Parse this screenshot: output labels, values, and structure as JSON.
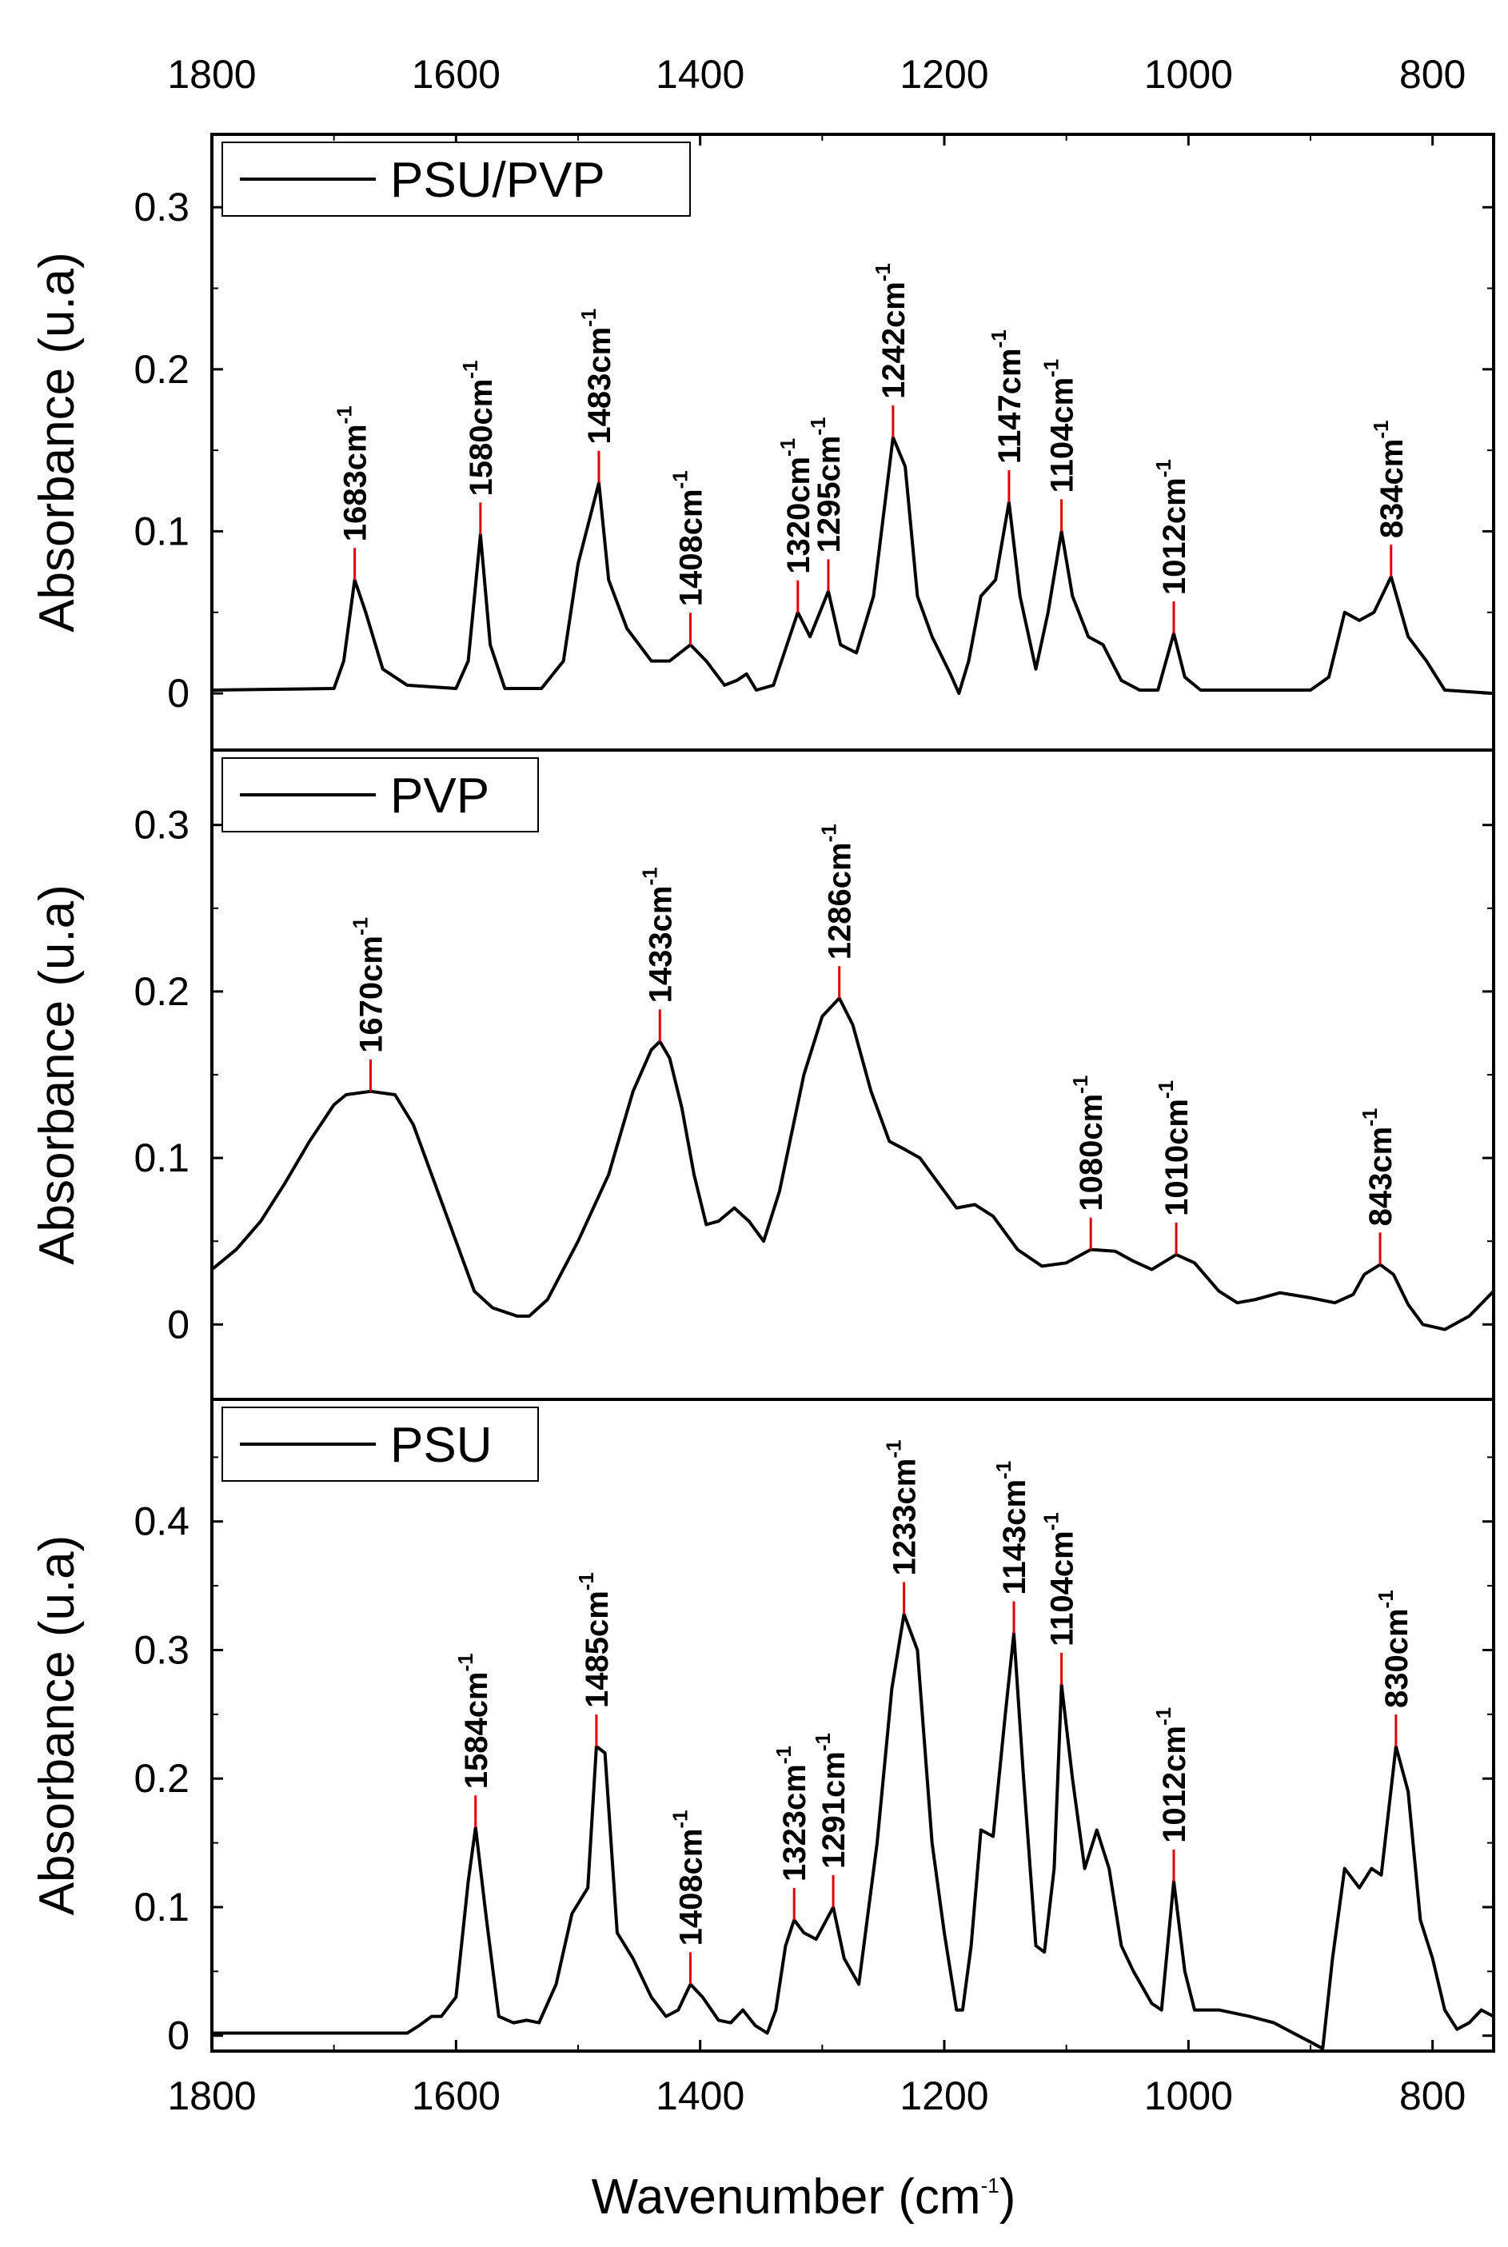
{
  "chart_data": {
    "type": "line",
    "xlabel": "Wavenumber (cm",
    "xlabel_sup": "-1",
    "xlabel_end": ")",
    "xlim": [
      1800,
      750
    ],
    "xticks": [
      "1800",
      "1600",
      "1400",
      "1200",
      "1000",
      "800"
    ],
    "panels": [
      {
        "id": "psu-pvp",
        "legend": "PSU/PVP",
        "ylabel": "Absorbance (u.a)",
        "ylim": [
          -0.035,
          0.345
        ],
        "yticks": [
          "0",
          "0.1",
          "0.2",
          "0.3"
        ],
        "spectrum": [
          [
            1800,
            0.002
          ],
          [
            1700,
            0.003
          ],
          [
            1692,
            0.02
          ],
          [
            1683,
            0.07
          ],
          [
            1674,
            0.05
          ],
          [
            1660,
            0.015
          ],
          [
            1640,
            0.005
          ],
          [
            1600,
            0.003
          ],
          [
            1590,
            0.02
          ],
          [
            1580,
            0.098
          ],
          [
            1572,
            0.03
          ],
          [
            1560,
            0.003
          ],
          [
            1530,
            0.003
          ],
          [
            1512,
            0.02
          ],
          [
            1500,
            0.08
          ],
          [
            1483,
            0.13
          ],
          [
            1475,
            0.07
          ],
          [
            1460,
            0.04
          ],
          [
            1440,
            0.02
          ],
          [
            1425,
            0.02
          ],
          [
            1408,
            0.03
          ],
          [
            1395,
            0.02
          ],
          [
            1380,
            0.005
          ],
          [
            1370,
            0.008
          ],
          [
            1362,
            0.012
          ],
          [
            1354,
            0.002
          ],
          [
            1340,
            0.005
          ],
          [
            1320,
            0.05
          ],
          [
            1310,
            0.035
          ],
          [
            1295,
            0.063
          ],
          [
            1285,
            0.03
          ],
          [
            1272,
            0.025
          ],
          [
            1258,
            0.06
          ],
          [
            1242,
            0.158
          ],
          [
            1232,
            0.14
          ],
          [
            1222,
            0.06
          ],
          [
            1210,
            0.035
          ],
          [
            1195,
            0.012
          ],
          [
            1188,
            0.0
          ],
          [
            1180,
            0.02
          ],
          [
            1170,
            0.06
          ],
          [
            1158,
            0.07
          ],
          [
            1147,
            0.118
          ],
          [
            1138,
            0.06
          ],
          [
            1125,
            0.015
          ],
          [
            1115,
            0.05
          ],
          [
            1104,
            0.1
          ],
          [
            1095,
            0.06
          ],
          [
            1082,
            0.035
          ],
          [
            1070,
            0.03
          ],
          [
            1055,
            0.008
          ],
          [
            1040,
            0.002
          ],
          [
            1025,
            0.002
          ],
          [
            1012,
            0.037
          ],
          [
            1003,
            0.01
          ],
          [
            990,
            0.002
          ],
          [
            900,
            0.002
          ],
          [
            885,
            0.01
          ],
          [
            872,
            0.05
          ],
          [
            860,
            0.045
          ],
          [
            848,
            0.05
          ],
          [
            834,
            0.072
          ],
          [
            820,
            0.035
          ],
          [
            805,
            0.02
          ],
          [
            790,
            0.002
          ],
          [
            750,
            0.0
          ]
        ],
        "peaks": [
          [
            "1683cm",
            1683,
            0.07
          ],
          [
            "1580cm",
            1580,
            0.098
          ],
          [
            "1483cm",
            1483,
            0.13
          ],
          [
            "1408cm",
            1408,
            0.03
          ],
          [
            "1320cm",
            1320,
            0.05
          ],
          [
            "1295cm",
            1295,
            0.063
          ],
          [
            "1242cm",
            1242,
            0.158
          ],
          [
            "1147cm",
            1147,
            0.118
          ],
          [
            "1104cm",
            1104,
            0.1
          ],
          [
            "1012cm",
            1012,
            0.037
          ],
          [
            "834cm",
            834,
            0.072
          ]
        ]
      },
      {
        "id": "pvp",
        "legend": "PVP",
        "ylabel": "Absorbance (u.a)",
        "ylim": [
          -0.045,
          0.345
        ],
        "yticks": [
          "0",
          "0.1",
          "0.2",
          "0.3"
        ],
        "spectrum": [
          [
            1800,
            0.033
          ],
          [
            1780,
            0.045
          ],
          [
            1760,
            0.062
          ],
          [
            1740,
            0.085
          ],
          [
            1720,
            0.11
          ],
          [
            1700,
            0.132
          ],
          [
            1690,
            0.138
          ],
          [
            1670,
            0.14
          ],
          [
            1650,
            0.138
          ],
          [
            1635,
            0.12
          ],
          [
            1620,
            0.09
          ],
          [
            1600,
            0.05
          ],
          [
            1585,
            0.02
          ],
          [
            1570,
            0.01
          ],
          [
            1550,
            0.005
          ],
          [
            1540,
            0.005
          ],
          [
            1525,
            0.015
          ],
          [
            1500,
            0.05
          ],
          [
            1475,
            0.09
          ],
          [
            1455,
            0.14
          ],
          [
            1440,
            0.165
          ],
          [
            1433,
            0.17
          ],
          [
            1425,
            0.16
          ],
          [
            1415,
            0.13
          ],
          [
            1405,
            0.09
          ],
          [
            1395,
            0.06
          ],
          [
            1385,
            0.062
          ],
          [
            1372,
            0.07
          ],
          [
            1360,
            0.062
          ],
          [
            1348,
            0.05
          ],
          [
            1335,
            0.08
          ],
          [
            1315,
            0.15
          ],
          [
            1300,
            0.185
          ],
          [
            1286,
            0.196
          ],
          [
            1275,
            0.18
          ],
          [
            1260,
            0.14
          ],
          [
            1245,
            0.11
          ],
          [
            1232,
            0.105
          ],
          [
            1220,
            0.1
          ],
          [
            1205,
            0.085
          ],
          [
            1190,
            0.07
          ],
          [
            1175,
            0.072
          ],
          [
            1160,
            0.065
          ],
          [
            1140,
            0.045
          ],
          [
            1120,
            0.035
          ],
          [
            1100,
            0.037
          ],
          [
            1080,
            0.045
          ],
          [
            1060,
            0.044
          ],
          [
            1045,
            0.038
          ],
          [
            1030,
            0.033
          ],
          [
            1010,
            0.042
          ],
          [
            995,
            0.037
          ],
          [
            975,
            0.02
          ],
          [
            960,
            0.013
          ],
          [
            945,
            0.015
          ],
          [
            925,
            0.019
          ],
          [
            900,
            0.016
          ],
          [
            880,
            0.013
          ],
          [
            865,
            0.018
          ],
          [
            856,
            0.03
          ],
          [
            843,
            0.036
          ],
          [
            832,
            0.03
          ],
          [
            820,
            0.012
          ],
          [
            808,
            0.0
          ],
          [
            790,
            -0.003
          ],
          [
            770,
            0.005
          ],
          [
            750,
            0.02
          ]
        ],
        "peaks": [
          [
            "1670cm",
            1670,
            0.14
          ],
          [
            "1433cm",
            1433,
            0.17
          ],
          [
            "1286cm",
            1286,
            0.196
          ],
          [
            "1080cm",
            1080,
            0.045
          ],
          [
            "1010cm",
            1010,
            0.042
          ],
          [
            "843cm",
            843,
            0.036
          ]
        ]
      },
      {
        "id": "psu",
        "legend": "PSU",
        "ylabel": "Absorbance (u.a)",
        "ylim": [
          -0.012,
          0.495
        ],
        "yticks": [
          "0",
          "0.1",
          "0.2",
          "0.3",
          "0.4"
        ],
        "spectrum": [
          [
            1800,
            0.002
          ],
          [
            1700,
            0.002
          ],
          [
            1640,
            0.002
          ],
          [
            1630,
            0.008
          ],
          [
            1620,
            0.015
          ],
          [
            1612,
            0.015
          ],
          [
            1600,
            0.03
          ],
          [
            1590,
            0.12
          ],
          [
            1584,
            0.162
          ],
          [
            1575,
            0.09
          ],
          [
            1565,
            0.015
          ],
          [
            1553,
            0.01
          ],
          [
            1542,
            0.012
          ],
          [
            1532,
            0.01
          ],
          [
            1518,
            0.04
          ],
          [
            1505,
            0.095
          ],
          [
            1492,
            0.115
          ],
          [
            1485,
            0.225
          ],
          [
            1478,
            0.22
          ],
          [
            1468,
            0.08
          ],
          [
            1455,
            0.06
          ],
          [
            1440,
            0.03
          ],
          [
            1428,
            0.015
          ],
          [
            1418,
            0.02
          ],
          [
            1408,
            0.04
          ],
          [
            1398,
            0.03
          ],
          [
            1385,
            0.012
          ],
          [
            1375,
            0.01
          ],
          [
            1365,
            0.02
          ],
          [
            1355,
            0.008
          ],
          [
            1345,
            0.002
          ],
          [
            1338,
            0.02
          ],
          [
            1330,
            0.07
          ],
          [
            1323,
            0.09
          ],
          [
            1315,
            0.08
          ],
          [
            1305,
            0.075
          ],
          [
            1291,
            0.1
          ],
          [
            1282,
            0.06
          ],
          [
            1270,
            0.04
          ],
          [
            1255,
            0.15
          ],
          [
            1243,
            0.27
          ],
          [
            1233,
            0.328
          ],
          [
            1222,
            0.3
          ],
          [
            1210,
            0.15
          ],
          [
            1200,
            0.08
          ],
          [
            1190,
            0.02
          ],
          [
            1185,
            0.02
          ],
          [
            1178,
            0.07
          ],
          [
            1170,
            0.16
          ],
          [
            1160,
            0.155
          ],
          [
            1150,
            0.25
          ],
          [
            1143,
            0.313
          ],
          [
            1135,
            0.2
          ],
          [
            1125,
            0.07
          ],
          [
            1118,
            0.065
          ],
          [
            1110,
            0.13
          ],
          [
            1104,
            0.273
          ],
          [
            1095,
            0.2
          ],
          [
            1085,
            0.13
          ],
          [
            1075,
            0.16
          ],
          [
            1065,
            0.13
          ],
          [
            1055,
            0.07
          ],
          [
            1045,
            0.05
          ],
          [
            1030,
            0.025
          ],
          [
            1022,
            0.02
          ],
          [
            1012,
            0.12
          ],
          [
            1003,
            0.05
          ],
          [
            995,
            0.02
          ],
          [
            975,
            0.02
          ],
          [
            950,
            0.015
          ],
          [
            930,
            0.01
          ],
          [
            910,
            0.0
          ],
          [
            900,
            -0.005
          ],
          [
            890,
            -0.01
          ],
          [
            882,
            0.06
          ],
          [
            872,
            0.13
          ],
          [
            860,
            0.115
          ],
          [
            850,
            0.13
          ],
          [
            842,
            0.125
          ],
          [
            830,
            0.225
          ],
          [
            820,
            0.19
          ],
          [
            810,
            0.09
          ],
          [
            800,
            0.06
          ],
          [
            790,
            0.02
          ],
          [
            780,
            0.005
          ],
          [
            770,
            0.01
          ],
          [
            760,
            0.02
          ],
          [
            750,
            0.015
          ]
        ],
        "peaks": [
          [
            "1584cm",
            1584,
            0.162
          ],
          [
            "1485cm",
            1485,
            0.225
          ],
          [
            "1408cm",
            1408,
            0.04
          ],
          [
            "1323cm",
            1323,
            0.09
          ],
          [
            "1291cm",
            1291,
            0.1
          ],
          [
            "1233cm",
            1233,
            0.328
          ],
          [
            "1143cm",
            1143,
            0.313
          ],
          [
            "1104cm",
            1104,
            0.273
          ],
          [
            "1012cm",
            1012,
            0.12
          ],
          [
            "830cm",
            830,
            0.225
          ]
        ]
      }
    ]
  }
}
